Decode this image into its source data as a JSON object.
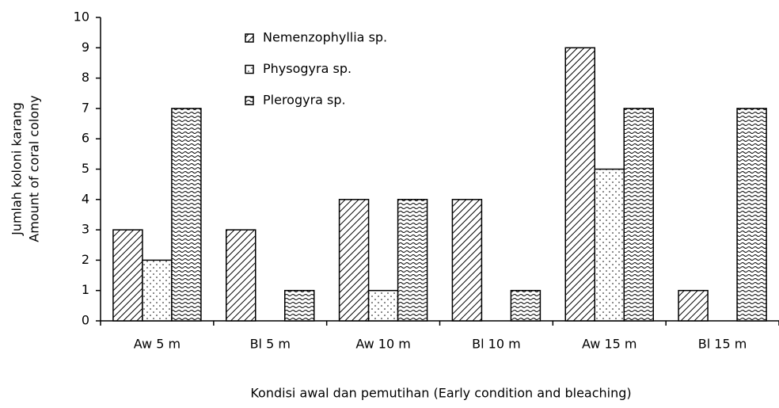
{
  "chart_data": {
    "type": "bar",
    "categories": [
      "Aw 5 m",
      "Bl 5 m",
      "Aw 10 m",
      "Bl 10 m",
      "Aw 15 m",
      "Bl 15 m"
    ],
    "series": [
      {
        "name": "Nemenzophyllia sp.",
        "color": "#000000",
        "values": [
          3,
          3,
          4,
          4,
          9,
          1
        ]
      },
      {
        "name": "Physogyra sp.",
        "color": "#000000",
        "values": [
          2,
          0,
          1,
          0,
          5,
          0
        ]
      },
      {
        "name": "Plerogyra sp.",
        "color": "#000000",
        "values": [
          7,
          1,
          4,
          1,
          7,
          7
        ]
      }
    ],
    "ylabel": [
      "Jumlah koloni karang",
      "Amount of coral colony"
    ],
    "xlabel": "Kondisi awal dan pemutihan (Early condition and bleaching)",
    "ylim": [
      0,
      10
    ],
    "yticks": [
      0,
      1,
      2,
      3,
      4,
      5,
      6,
      7,
      8,
      9,
      10
    ],
    "grid": false
  }
}
